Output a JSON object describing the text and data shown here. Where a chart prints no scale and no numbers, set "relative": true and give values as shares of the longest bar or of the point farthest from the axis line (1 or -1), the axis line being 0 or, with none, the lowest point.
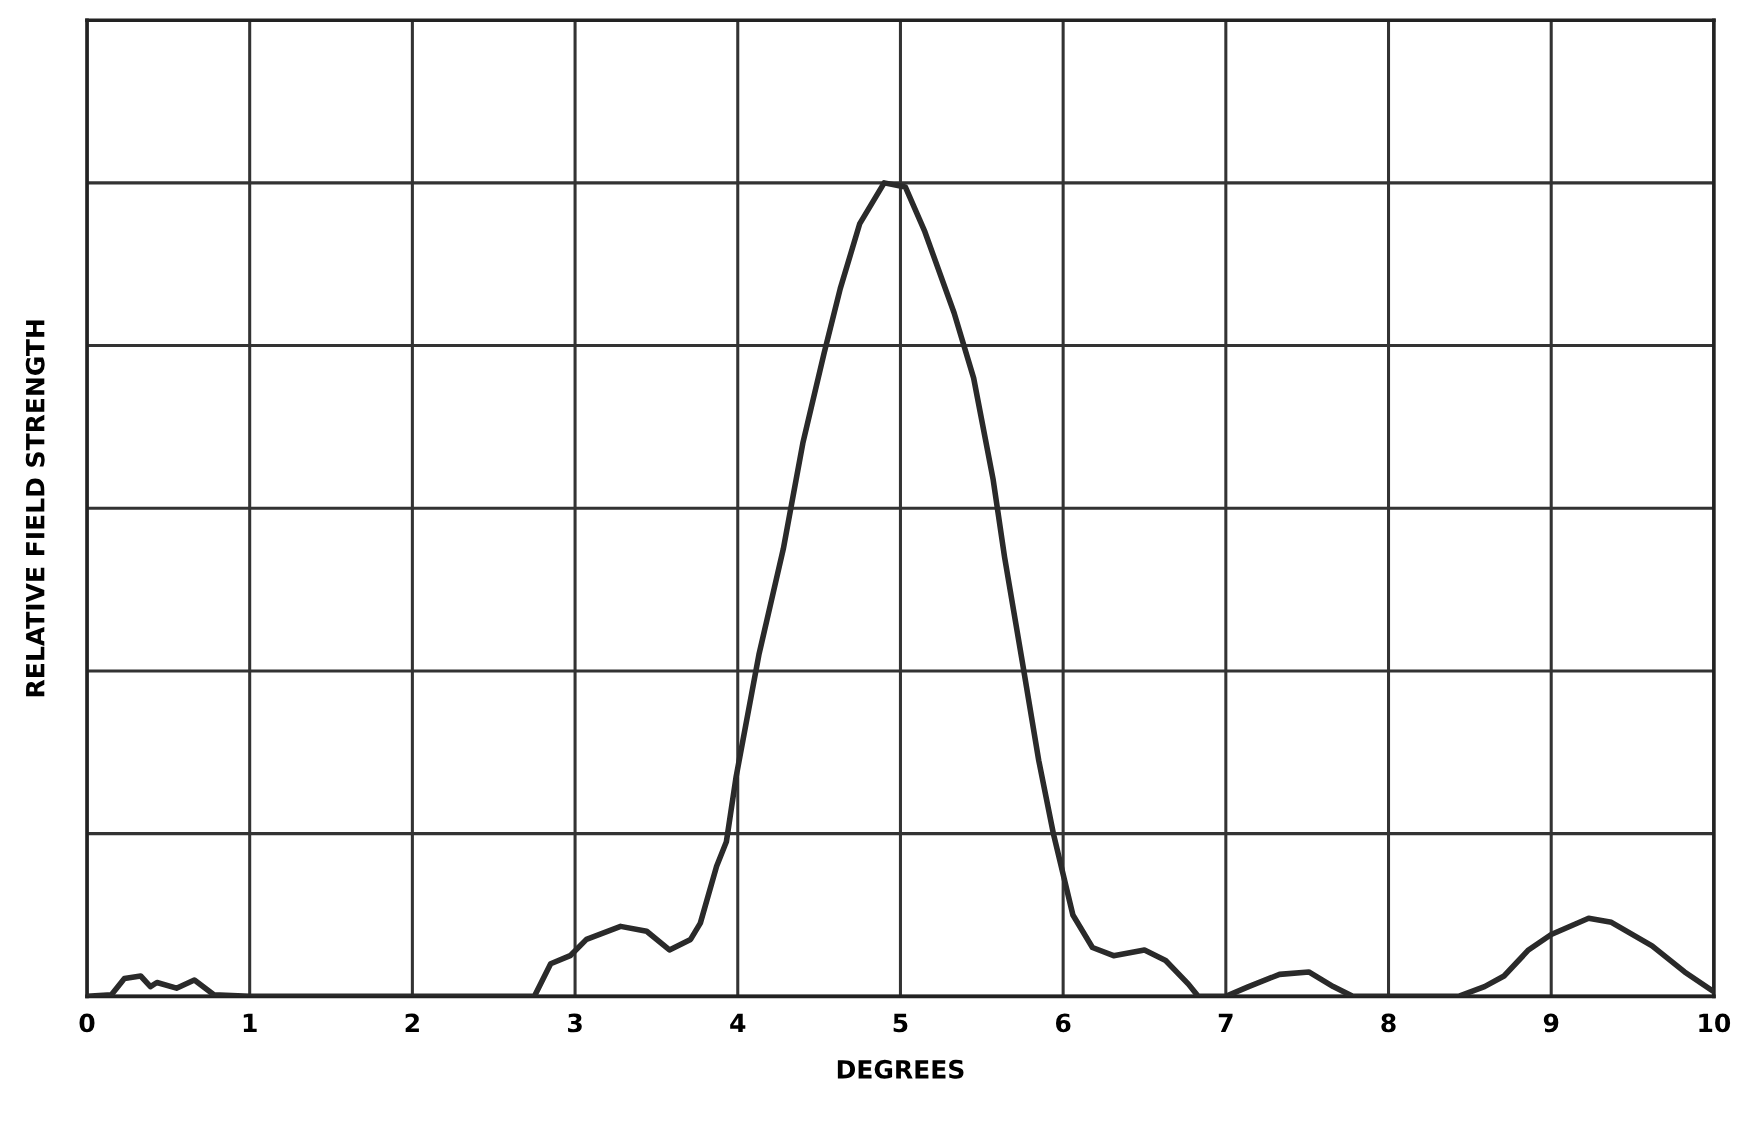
{
  "chart_data": {
    "type": "line",
    "xlabel": "DEGREES",
    "ylabel": "RELATIVE FIELD STRENGTH",
    "relative": true,
    "xlim": [
      0,
      10
    ],
    "xticks": [
      0,
      1,
      2,
      3,
      4,
      5,
      6,
      7,
      8,
      9,
      10
    ],
    "grid": true,
    "marker": "none",
    "line_style": "solid",
    "series": [
      {
        "color": "#2a2a2a",
        "x": [
          0,
          0.15,
          0.23,
          0.33,
          0.39,
          0.43,
          0.55,
          0.66,
          0.78,
          1.0,
          2.0,
          2.75,
          2.85,
          2.97,
          3.07,
          3.28,
          3.44,
          3.58,
          3.71,
          3.77,
          3.87,
          3.93,
          3.99,
          4.13,
          4.28,
          4.4,
          4.53,
          4.63,
          4.75,
          4.9,
          5.03,
          5.15,
          5.33,
          5.45,
          5.57,
          5.64,
          5.75,
          5.85,
          5.94,
          6.06,
          6.18,
          6.31,
          6.5,
          6.63,
          6.77,
          6.83,
          7.0,
          7.14,
          7.33,
          7.51,
          7.66,
          7.78,
          8.43,
          8.59,
          8.71,
          8.86,
          9.0,
          9.23,
          9.37,
          9.62,
          9.82,
          9.99
        ],
        "values": [
          0,
          0.002,
          0.022,
          0.025,
          0.012,
          0.017,
          0.01,
          0.02,
          0.002,
          0,
          0,
          0,
          0.04,
          0.05,
          0.07,
          0.086,
          0.08,
          0.057,
          0.07,
          0.09,
          0.16,
          0.19,
          0.27,
          0.42,
          0.55,
          0.68,
          0.79,
          0.87,
          0.95,
          1.0,
          0.995,
          0.94,
          0.84,
          0.76,
          0.635,
          0.54,
          0.41,
          0.29,
          0.2,
          0.1,
          0.06,
          0.05,
          0.057,
          0.044,
          0.015,
          0,
          0,
          0.012,
          0.027,
          0.03,
          0.012,
          0,
          0,
          0.012,
          0.025,
          0.057,
          0.076,
          0.096,
          0.091,
          0.062,
          0.03,
          0.007
        ]
      }
    ]
  }
}
